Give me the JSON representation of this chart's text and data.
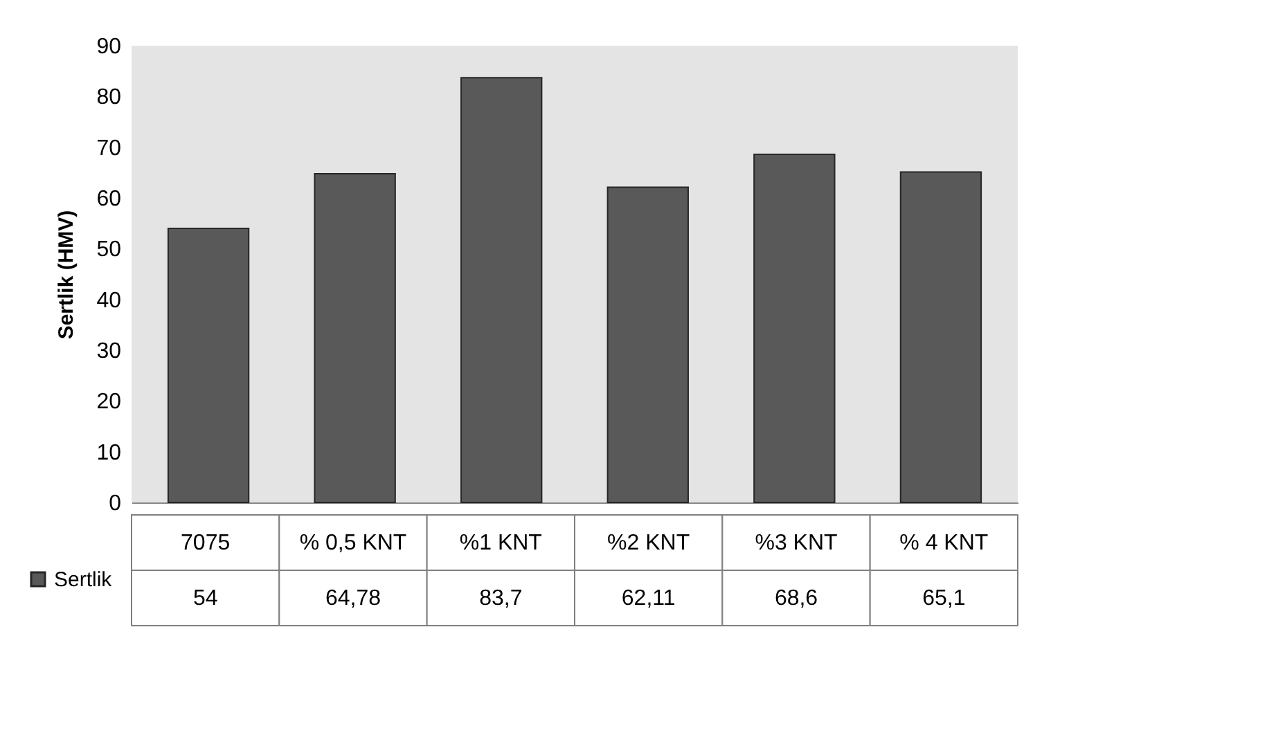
{
  "chart_data": {
    "type": "bar",
    "ylabel": "Sertlik  (HMV)",
    "categories": [
      "7075",
      "% 0,5 KNT",
      "%1 KNT",
      "%2 KNT",
      "%3 KNT",
      "% 4 KNT"
    ],
    "series": [
      {
        "name": "Sertlik",
        "color": "#595959",
        "values": [
          54,
          64.78,
          83.7,
          62.11,
          68.6,
          65.1
        ],
        "value_labels": [
          "54",
          "64,78",
          "83,7",
          "62,11",
          "68,6",
          "65,1"
        ]
      }
    ],
    "ylim": [
      0,
      90
    ],
    "yticks": [
      0,
      10,
      20,
      30,
      40,
      50,
      60,
      70,
      80,
      90
    ],
    "grid": false,
    "legend": "bottom left"
  }
}
